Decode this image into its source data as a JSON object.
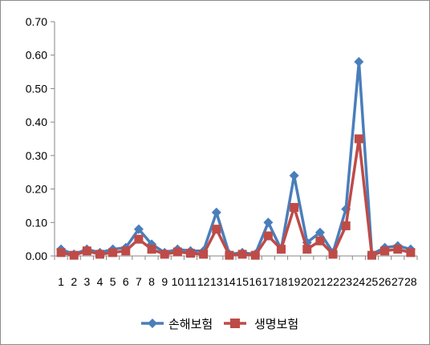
{
  "chart_data": {
    "type": "line",
    "title": "",
    "xlabel": "",
    "ylabel": "",
    "x": [
      1,
      2,
      3,
      4,
      5,
      6,
      7,
      8,
      9,
      10,
      11,
      12,
      13,
      14,
      15,
      16,
      17,
      18,
      19,
      20,
      21,
      22,
      23,
      24,
      25,
      26,
      27,
      28
    ],
    "x_tick_labels": [
      "1",
      "2",
      "3",
      "4",
      "5",
      "6",
      "7",
      "8",
      "9",
      "10",
      "11",
      "12",
      "13",
      "14",
      "15",
      "16",
      "17",
      "18",
      "19",
      "20",
      "21",
      "22",
      "23",
      "24",
      "25",
      "26",
      "27",
      "28"
    ],
    "ylim": [
      0,
      0.7
    ],
    "y_tick_labels": [
      "0.00",
      "0.10",
      "0.20",
      "0.30",
      "0.40",
      "0.50",
      "0.60",
      "0.70"
    ],
    "grid": false,
    "legend_position": "bottom",
    "series": [
      {
        "name": "손해보험",
        "color": "#4a7ebb",
        "marker": "diamond",
        "values": [
          0.02,
          0.005,
          0.02,
          0.01,
          0.02,
          0.025,
          0.08,
          0.035,
          0.01,
          0.02,
          0.015,
          0.015,
          0.13,
          0.005,
          0.01,
          0.005,
          0.1,
          0.02,
          0.24,
          0.04,
          0.07,
          0.01,
          0.14,
          0.58,
          0.005,
          0.025,
          0.03,
          0.02
        ]
      },
      {
        "name": "생명보험",
        "color": "#be4b48",
        "marker": "square",
        "values": [
          0.01,
          0.002,
          0.015,
          0.005,
          0.01,
          0.015,
          0.05,
          0.02,
          0.005,
          0.012,
          0.008,
          0.005,
          0.08,
          0.002,
          0.005,
          0.002,
          0.06,
          0.02,
          0.145,
          0.02,
          0.045,
          0.005,
          0.09,
          0.35,
          0.002,
          0.015,
          0.02,
          0.01
        ]
      }
    ]
  }
}
